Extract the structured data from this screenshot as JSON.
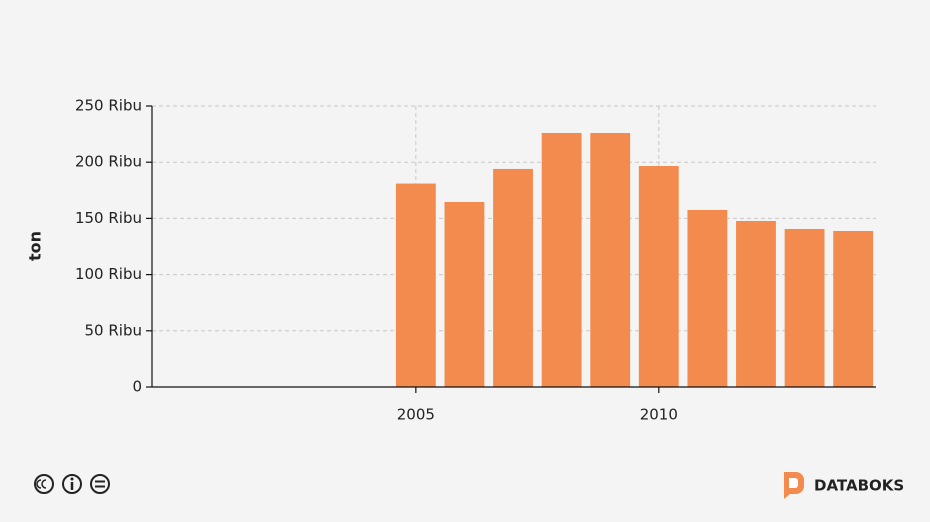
{
  "chart_data": {
    "type": "bar",
    "y_label": "ton",
    "x": [
      2005,
      2006,
      2007,
      2008,
      2009,
      2010,
      2011,
      2012,
      2013,
      2014
    ],
    "values": [
      181000,
      164600,
      194000,
      226000,
      226000,
      196600,
      157500,
      147700,
      140600,
      138800
    ],
    "color": "#f48b4e",
    "xlim": [
      1999.57,
      2014.47
    ],
    "xticks": [
      2005,
      2010
    ],
    "ylim": [
      0,
      250000
    ],
    "yticks": [
      {
        "value": 0,
        "label": "0"
      },
      {
        "value": 50000,
        "label": "50 Ribu"
      },
      {
        "value": 100000,
        "label": "100 Ribu"
      },
      {
        "value": 150000,
        "label": "150 Ribu"
      },
      {
        "value": 200000,
        "label": "200 Ribu"
      },
      {
        "value": 250000,
        "label": "250 Ribu"
      }
    ],
    "grid": true,
    "brand": "DATABOKS"
  }
}
